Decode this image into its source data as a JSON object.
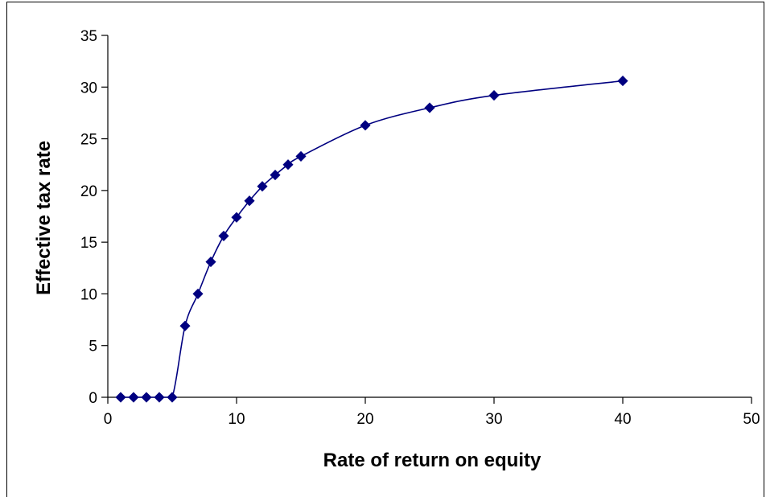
{
  "chart_data": {
    "type": "line",
    "title": "",
    "xlabel": "Rate of return on equity",
    "ylabel": "Effective tax rate",
    "xlim": [
      0,
      50
    ],
    "ylim": [
      0,
      35
    ],
    "xticks": [
      "0",
      "10",
      "20",
      "30",
      "40",
      "50"
    ],
    "yticks": [
      "0",
      "5",
      "10",
      "15",
      "20",
      "25",
      "30",
      "35"
    ],
    "grid": false,
    "legend": "none",
    "series": [
      {
        "color": "#000080",
        "marker": "diamond",
        "smooth": true,
        "x": [
          1,
          2,
          3,
          4,
          5,
          6,
          7,
          8,
          9,
          10,
          11,
          12,
          13,
          14,
          15,
          20,
          25,
          30,
          40
        ],
        "y": [
          0,
          0,
          0,
          0,
          0,
          6.9,
          10.0,
          13.1,
          15.6,
          17.4,
          19.0,
          20.4,
          21.5,
          22.5,
          23.3,
          26.3,
          28.0,
          29.2,
          30.6
        ]
      }
    ]
  }
}
